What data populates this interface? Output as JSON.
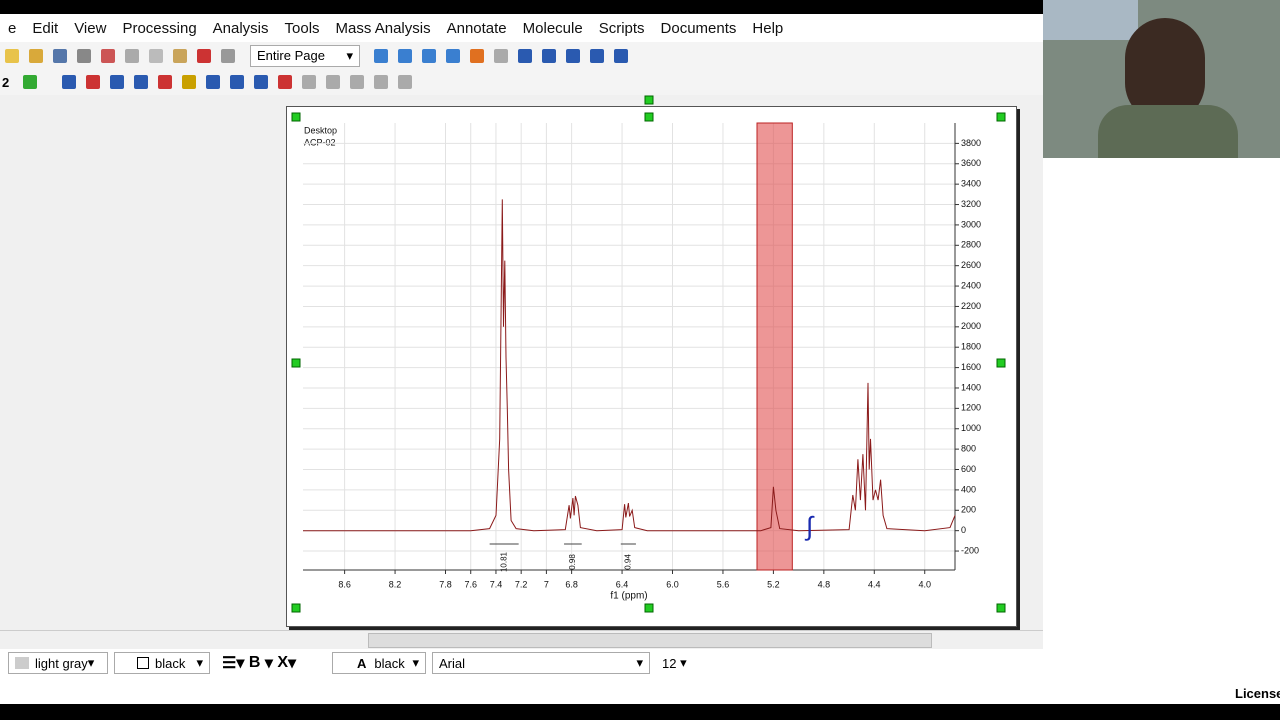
{
  "menu": [
    "e",
    "Edit",
    "View",
    "Processing",
    "Analysis",
    "Tools",
    "Mass Analysis",
    "Annotate",
    "Molecule",
    "Scripts",
    "Documents",
    "Help"
  ],
  "toolbar": {
    "zoom_mode": "Entire Page",
    "row2_label": "2"
  },
  "status_bar": {
    "fill": "light gray",
    "line": "black",
    "bold": "B",
    "subscript": "X",
    "text_color": "black",
    "font": "Arial",
    "size": "12",
    "license": "License"
  },
  "chart_data": {
    "type": "line",
    "annotation": [
      "Desktop",
      "ACP-02"
    ],
    "x_label": "f1 (ppm)",
    "xlim": [
      8.93,
      3.76
    ],
    "ylim": [
      -386,
      4000
    ],
    "xticks": [
      8.6,
      8.2,
      7.8,
      7.6,
      7.4,
      7.2,
      7.0,
      6.8,
      6.4,
      {
        "value": 6,
        "label": "6.0"
      },
      5.6,
      5.2,
      4.8,
      4.4,
      {
        "value": 4,
        "label": "4.0"
      }
    ],
    "yticks": [
      -200,
      0,
      200,
      400,
      600,
      800,
      1000,
      1200,
      1400,
      1600,
      1800,
      2000,
      2200,
      2400,
      2600,
      2800,
      3000,
      3200,
      3400,
      3600,
      3800
    ],
    "selection": [
      5.33,
      5.05
    ],
    "integrals": [
      {
        "range": [
          7.45,
          7.22
        ],
        "label": "10.81"
      },
      {
        "range": [
          6.86,
          6.72
        ],
        "label": "0.98"
      },
      {
        "range": [
          6.41,
          6.29
        ],
        "label": "0.94"
      }
    ],
    "series": [
      {
        "color": "#8b1a1a",
        "x": [
          8.93,
          7.6,
          7.45,
          7.4,
          7.37,
          7.35,
          7.34,
          7.33,
          7.32,
          7.31,
          7.3,
          7.28,
          7.24,
          7.1,
          6.85,
          6.82,
          6.81,
          6.79,
          6.78,
          6.77,
          6.75,
          6.73,
          6.6,
          6.4,
          6.38,
          6.37,
          6.35,
          6.34,
          6.32,
          6.3,
          6.2,
          5.3,
          5.22,
          5.2,
          5.18,
          5.15,
          5.0,
          4.6,
          4.57,
          4.55,
          4.53,
          4.51,
          4.49,
          4.47,
          4.45,
          4.44,
          4.43,
          4.41,
          4.39,
          4.37,
          4.35,
          4.33,
          4.3,
          4.0,
          3.8,
          3.76
        ],
        "values": [
          0,
          0,
          20,
          150,
          900,
          3250,
          2000,
          2650,
          1700,
          1200,
          600,
          100,
          20,
          0,
          10,
          250,
          120,
          320,
          150,
          340,
          250,
          30,
          0,
          10,
          260,
          130,
          270,
          140,
          200,
          30,
          0,
          0,
          30,
          430,
          200,
          20,
          0,
          10,
          350,
          200,
          700,
          300,
          750,
          200,
          1450,
          600,
          900,
          300,
          400,
          300,
          500,
          150,
          20,
          0,
          30,
          150
        ]
      }
    ]
  }
}
